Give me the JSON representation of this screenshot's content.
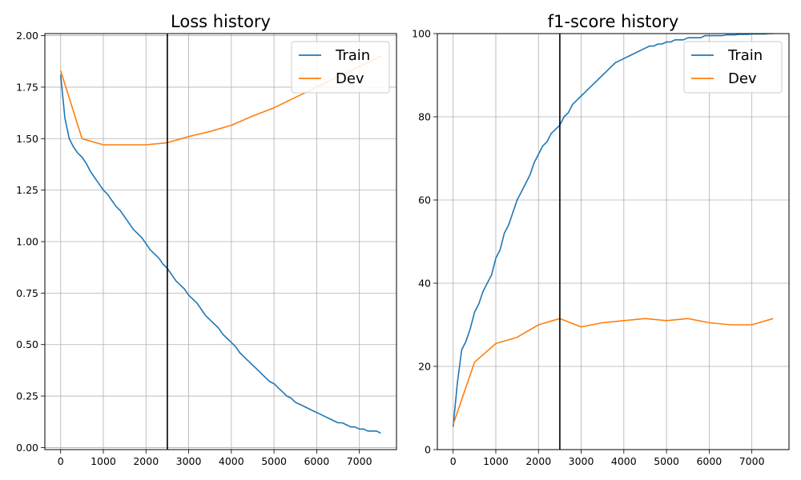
{
  "colors": {
    "train": "#1f77b4",
    "dev": "#ff7f0e",
    "marker_line": "#000000",
    "grid": "#b0b0b0"
  },
  "chart_data": [
    {
      "type": "line",
      "title": "Loss history",
      "xlabel": "",
      "ylabel": "",
      "xlim": [
        -370,
        7870
      ],
      "ylim": [
        -0.01,
        2.01
      ],
      "xticks": [
        0,
        1000,
        2000,
        3000,
        4000,
        5000,
        6000,
        7000
      ],
      "xtick_labels": [
        "0",
        "1000",
        "2000",
        "3000",
        "4000",
        "5000",
        "6000",
        "7000"
      ],
      "yticks": [
        0.0,
        0.25,
        0.5,
        0.75,
        1.0,
        1.25,
        1.5,
        1.75,
        2.0
      ],
      "ytick_labels": [
        "0.00",
        "0.25",
        "0.50",
        "0.75",
        "1.00",
        "1.25",
        "1.50",
        "1.75",
        "2.00"
      ],
      "grid": true,
      "legend_position": "top-right",
      "vline_x": 2500,
      "series": [
        {
          "name": "Train",
          "color_key": "train",
          "x": [
            0,
            100,
            200,
            300,
            400,
            500,
            600,
            700,
            800,
            900,
            1000,
            1100,
            1200,
            1300,
            1400,
            1500,
            1600,
            1700,
            1800,
            1900,
            2000,
            2100,
            2200,
            2300,
            2400,
            2500,
            2600,
            2700,
            2800,
            2900,
            3000,
            3100,
            3200,
            3300,
            3400,
            3500,
            3600,
            3700,
            3800,
            3900,
            4000,
            4100,
            4200,
            4300,
            4400,
            4500,
            4600,
            4700,
            4800,
            4900,
            5000,
            5100,
            5200,
            5300,
            5400,
            5500,
            5600,
            5700,
            5800,
            5900,
            6000,
            6100,
            6200,
            6300,
            6400,
            6500,
            6600,
            6700,
            6800,
            6900,
            7000,
            7100,
            7200,
            7300,
            7400,
            7500
          ],
          "y": [
            1.81,
            1.6,
            1.5,
            1.46,
            1.43,
            1.41,
            1.38,
            1.34,
            1.31,
            1.28,
            1.25,
            1.23,
            1.2,
            1.17,
            1.15,
            1.12,
            1.09,
            1.06,
            1.04,
            1.02,
            0.99,
            0.96,
            0.94,
            0.92,
            0.89,
            0.87,
            0.84,
            0.81,
            0.79,
            0.77,
            0.74,
            0.72,
            0.7,
            0.67,
            0.64,
            0.62,
            0.6,
            0.58,
            0.55,
            0.53,
            0.51,
            0.49,
            0.46,
            0.44,
            0.42,
            0.4,
            0.38,
            0.36,
            0.34,
            0.32,
            0.31,
            0.29,
            0.27,
            0.25,
            0.24,
            0.22,
            0.21,
            0.2,
            0.19,
            0.18,
            0.17,
            0.16,
            0.15,
            0.14,
            0.13,
            0.12,
            0.12,
            0.11,
            0.1,
            0.1,
            0.09,
            0.09,
            0.08,
            0.08,
            0.08,
            0.07
          ]
        },
        {
          "name": "Dev",
          "color_key": "dev",
          "x": [
            0,
            500,
            1000,
            1500,
            2000,
            2500,
            3000,
            3500,
            4000,
            4500,
            5000,
            5500,
            6000,
            6500,
            7000,
            7500
          ],
          "y": [
            1.83,
            1.5,
            1.47,
            1.47,
            1.47,
            1.48,
            1.51,
            1.535,
            1.565,
            1.61,
            1.65,
            1.7,
            1.75,
            1.8,
            1.85,
            1.9
          ]
        }
      ]
    },
    {
      "type": "line",
      "title": "f1-score history",
      "xlabel": "",
      "ylabel": "",
      "xlim": [
        -370,
        7870
      ],
      "ylim": [
        0,
        100
      ],
      "xticks": [
        0,
        1000,
        2000,
        3000,
        4000,
        5000,
        6000,
        7000
      ],
      "xtick_labels": [
        "0",
        "1000",
        "2000",
        "3000",
        "4000",
        "5000",
        "6000",
        "7000"
      ],
      "yticks": [
        0,
        20,
        40,
        60,
        80,
        100
      ],
      "ytick_labels": [
        "0",
        "20",
        "40",
        "60",
        "80",
        "100"
      ],
      "grid": true,
      "legend_position": "top-right",
      "vline_x": 2500,
      "series": [
        {
          "name": "Train",
          "color_key": "train",
          "x": [
            0,
            100,
            200,
            300,
            400,
            500,
            600,
            700,
            800,
            900,
            1000,
            1100,
            1200,
            1300,
            1400,
            1500,
            1600,
            1700,
            1800,
            1900,
            2000,
            2100,
            2200,
            2300,
            2400,
            2500,
            2600,
            2700,
            2800,
            2900,
            3000,
            3100,
            3200,
            3300,
            3400,
            3500,
            3600,
            3700,
            3800,
            3900,
            4000,
            4100,
            4200,
            4300,
            4400,
            4500,
            4600,
            4700,
            4800,
            4900,
            5000,
            5100,
            5200,
            5300,
            5400,
            5500,
            5600,
            5700,
            5800,
            5900,
            6000,
            6100,
            6200,
            6300,
            6400,
            6500,
            6600,
            6700,
            6800,
            6900,
            7000,
            7100,
            7200,
            7300,
            7400,
            7500
          ],
          "y": [
            5.5,
            16,
            24,
            26,
            29,
            33,
            35,
            38,
            40,
            42,
            46,
            48,
            52,
            54,
            57,
            60,
            62,
            64,
            66,
            69,
            71,
            73,
            74,
            76,
            77,
            78,
            80,
            81,
            83,
            84,
            85,
            86,
            87,
            88,
            89,
            90,
            91,
            92,
            93,
            93.5,
            94,
            94.5,
            95,
            95.5,
            96,
            96.5,
            97,
            97,
            97.5,
            97.5,
            98,
            98,
            98.5,
            98.5,
            98.5,
            99,
            99,
            99,
            99,
            99.5,
            99.5,
            99.5,
            99.5,
            99.5,
            99.7,
            99.7,
            99.7,
            99.8,
            99.8,
            99.8,
            99.9,
            99.9,
            99.9,
            99.9,
            100,
            100
          ]
        },
        {
          "name": "Dev",
          "color_key": "dev",
          "x": [
            0,
            500,
            1000,
            1500,
            2000,
            2500,
            3000,
            3500,
            4000,
            4500,
            5000,
            5500,
            6000,
            6500,
            7000,
            7500
          ],
          "y": [
            6,
            21,
            25.5,
            27,
            30,
            31.5,
            29.5,
            30.5,
            31,
            31.5,
            31,
            31.5,
            30.5,
            30,
            30,
            31.5
          ]
        }
      ]
    }
  ]
}
